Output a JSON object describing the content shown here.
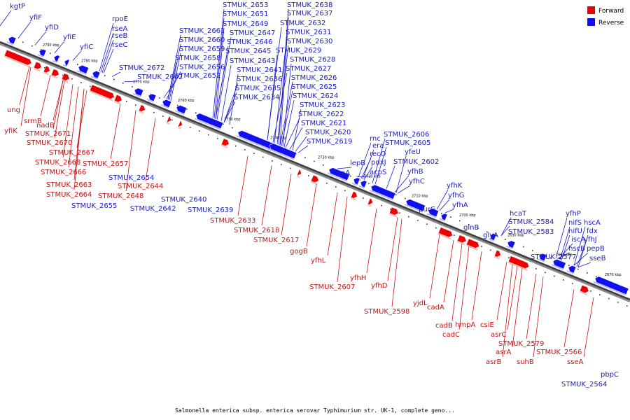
{
  "caption": "Salmonella enterica subsp. enterica serovar Typhimurium str. UK-1, complete geno...",
  "legend": [
    {
      "label": "Forward",
      "color": "#ee0000"
    },
    {
      "label": "Reverse",
      "color": "#1010ee"
    }
  ],
  "ticks": [
    "2790 kbp",
    "2780 kbp",
    "2770 kbp",
    "2760 kbp",
    "2750 kbp",
    "2740 kbp",
    "2730 kbp",
    "2720 kbp",
    "2710 kbp",
    "2700 kbp",
    "2690 kbp",
    "2680 kbp",
    "2670 kbp"
  ],
  "reverse_labels": [
    "kgtP",
    "yfiF",
    "yfiD",
    "yfiE",
    "yfiC",
    "rpoE",
    "rseA",
    "rseB",
    "rseC",
    "STMUK_2672",
    "STMUK_2662",
    "STMUK_2661",
    "STMUK_2660",
    "STMUK_2659",
    "STMUK_2658",
    "STMUK_2656",
    "STMUK_2652",
    "STMUK_2653",
    "STMUK_2651",
    "STMUK_2649",
    "STMUK_2647",
    "STMUK_2646",
    "STMUK_2645",
    "STMUK_2643",
    "STMUK_2641",
    "STMUK_2636",
    "STMUK_2635",
    "STMUK_2634",
    "STMUK_2638",
    "STMUK_2637",
    "STMUK_2632",
    "STMUK_2631",
    "STMUK_2630",
    "STMUK_2629",
    "STMUK_2628",
    "STMUK_2627",
    "STMUK_2626",
    "STMUK_2625",
    "STMUK_2624",
    "STMUK_2623",
    "STMUK_2622",
    "STMUK_2621",
    "STMUK_2620",
    "STMUK_2619",
    "lepA",
    "lepB",
    "rnc",
    "era",
    "recO",
    "pdxJ",
    "acpS",
    "STMUK_2606",
    "STMUK_2605",
    "yfeU",
    "STMUK_2602",
    "yfhB",
    "yfhC",
    "yfhK",
    "yfhG",
    "yfhA",
    "purG",
    "glnB",
    "glyA",
    "hcaT",
    "STMUK_2584",
    "STMUK_2583",
    "STMUK_2577",
    "yfhP",
    "nifS",
    "nifU",
    "iscA",
    "hscB",
    "hscA",
    "fdx",
    "yfhJ",
    "pepB",
    "sseB",
    "STMUK_2654",
    "STMUK_2655",
    "STMUK_2642",
    "STMUK_2640",
    "STMUK_2639",
    "STMUK_2564",
    "pbpC"
  ],
  "forward_labels": [
    "ung",
    "yfiK",
    "srmB",
    "nadB",
    "STMUK_2671",
    "STMUK_2670",
    "STMUK_2667",
    "STMUK_2668",
    "STMUK_2666",
    "STMUK_2657",
    "STMUK_2663",
    "STMUK_2664",
    "STMUK_2644",
    "STMUK_2648",
    "STMUK_2633",
    "STMUK_2618",
    "STMUK_2617",
    "gogB",
    "yfhL",
    "STMUK_2607",
    "yfhH",
    "yfhD",
    "STMUK_2598",
    "yjdL",
    "cadA",
    "cadB",
    "hmpA",
    "cadC",
    "csiE",
    "asrC",
    "STMUK_2579",
    "asrA",
    "suhB",
    "asrB",
    "STMUK_2566",
    "sseA"
  ]
}
